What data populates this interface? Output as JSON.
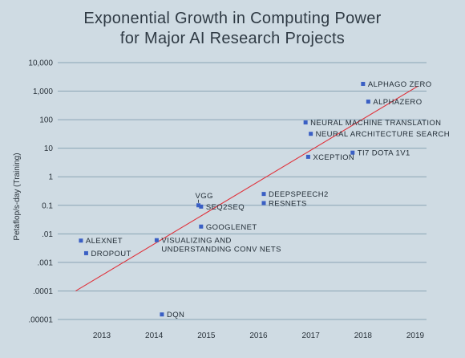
{
  "chart_data": {
    "type": "scatter",
    "title_lines": [
      "Exponential Growth in Computing Power",
      "for Major AI Research Projects"
    ],
    "ylabel": "Petaflop/s-day (Training)",
    "xlabel": "",
    "yscale": "log",
    "ylim": [
      1e-05,
      10000
    ],
    "xlim": [
      2012.4,
      2019.2
    ],
    "y_tick_labels": [
      "10,000",
      "1,000",
      "100",
      "10",
      "1",
      "0.1",
      ".01",
      ".001",
      ".0001",
      ".00001"
    ],
    "x_tick_labels": [
      "2013",
      "2014",
      "2015",
      "2016",
      "2017",
      "2018",
      "2019"
    ],
    "grid": true,
    "marker_color": "#3a5fc4",
    "trend_color": "#e0313a",
    "trendline": [
      [
        2012.5,
        0.0001
      ],
      [
        2019.05,
        1500
      ]
    ],
    "points": [
      {
        "label": [
          "ALPHAGO ZERO"
        ],
        "x": 2018.0,
        "y": 1800
      },
      {
        "label": [
          "ALPHAZERO"
        ],
        "x": 2018.1,
        "y": 430
      },
      {
        "label": [
          "NEURAL MACHINE TRANSLATION"
        ],
        "x": 2016.9,
        "y": 80
      },
      {
        "label": [
          "NEURAL ARCHITECTURE SEARCH"
        ],
        "x": 2017.0,
        "y": 32
      },
      {
        "label": [
          "TI7 DOTA 1V1"
        ],
        "x": 2017.8,
        "y": 7
      },
      {
        "label": [
          "XCEPTION"
        ],
        "x": 2016.95,
        "y": 5
      },
      {
        "label": [
          "DEEPSPEECH2"
        ],
        "x": 2016.1,
        "y": 0.25
      },
      {
        "label": [
          "RESNETS"
        ],
        "x": 2016.1,
        "y": 0.12
      },
      {
        "label": [
          "VGG"
        ],
        "x": 2014.85,
        "y": 0.1,
        "label_pos": "above"
      },
      {
        "label": [
          "SEQ2SEQ"
        ],
        "x": 2014.9,
        "y": 0.09
      },
      {
        "label": [
          "GOOGLENET"
        ],
        "x": 2014.9,
        "y": 0.018
      },
      {
        "label": [
          "VISUALIZING AND",
          "UNDERSTANDING CONV NETS"
        ],
        "x": 2014.05,
        "y": 0.006
      },
      {
        "label": [
          "ALEXNET"
        ],
        "x": 2012.6,
        "y": 0.0058
      },
      {
        "label": [
          "DROPOUT"
        ],
        "x": 2012.7,
        "y": 0.0021
      },
      {
        "label": [
          "DQN"
        ],
        "x": 2014.15,
        "y": 1.5e-05
      }
    ]
  }
}
